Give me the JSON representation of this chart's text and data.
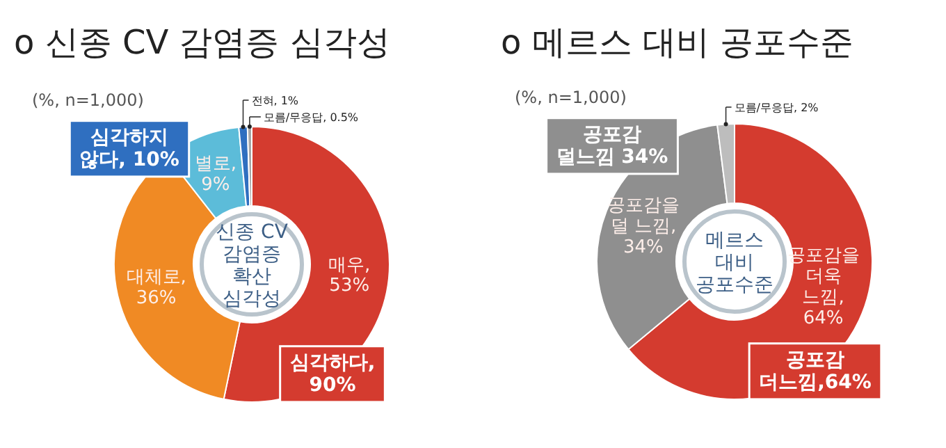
{
  "chart_data": [
    {
      "type": "donut",
      "title": "o  신종 CV 감염증 심각성",
      "categories": [
        "매우",
        "대체로",
        "별로",
        "전혀",
        "모름/무응답"
      ],
      "values": [
        53,
        36,
        9,
        1,
        0.5
      ],
      "value_labels": [
        ", 53%",
        ", 36%",
        ", 9%",
        ", 1%",
        ", 0.5%"
      ],
      "colors": [
        "#d43b2f",
        "#f08a24",
        "#5cbcd9",
        "#2f6fc0",
        "#a6a6a6"
      ],
      "annotations": [
        "(%, n=1,000)",
        "신종 CV\n감염증\n확산\n심각성",
        "심각하지\n않다, 10%",
        "심각하다,\n90%"
      ]
    },
    {
      "type": "donut",
      "title": "o  메르스  대비  공포수준",
      "categories": [
        "공포감을\n더욱\n느낌",
        "공포감을\n덜 느낌",
        "모름/무응답"
      ],
      "values": [
        64,
        34,
        2
      ],
      "value_labels": [
        ", 64%",
        ", 34%",
        ", 2%"
      ],
      "colors": [
        "#d43b2f",
        "#8f8f8f",
        "#bdbdbd"
      ],
      "annotations": [
        "(%, n=1,000)",
        "메르스\n대비\n공포수준",
        "공포감\n덜느낌 34%",
        "공포감\n더느낌,64%"
      ]
    }
  ]
}
